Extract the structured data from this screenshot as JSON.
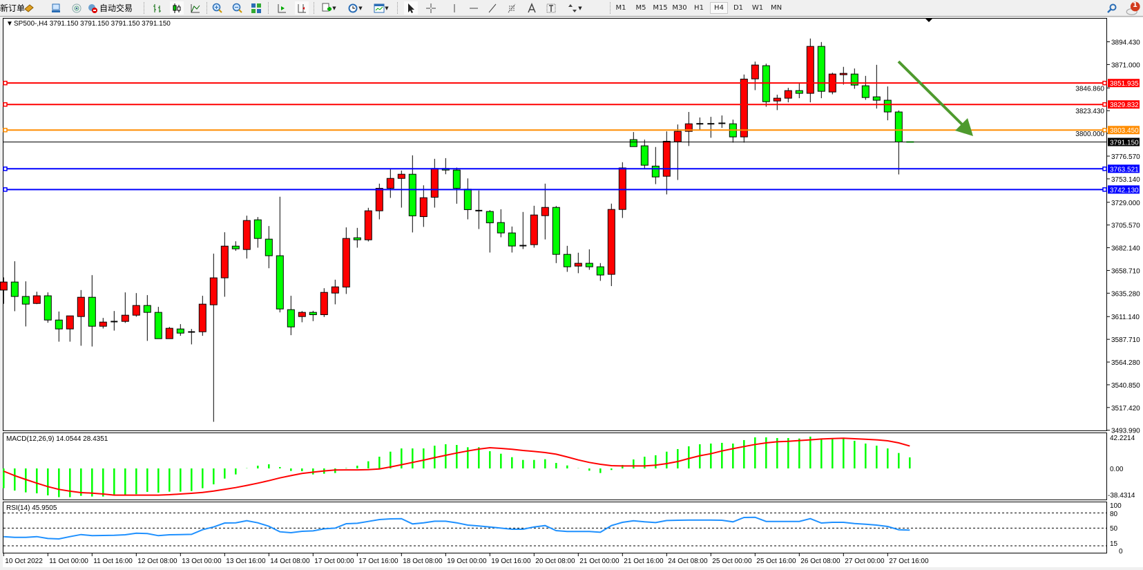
{
  "toolbar": {
    "new_order_label": "新订单",
    "auto_trading_label": "自动交易",
    "icons": [
      "market-watch-icon",
      "navigator-icon",
      "signals-icon",
      "auto-trading-icon",
      "bar-chart-icon",
      "candlestick-icon",
      "line-chart-icon",
      "zoom-in-icon",
      "zoom-out-icon",
      "tile-windows-icon",
      "auto-scroll-icon",
      "chart-shift-icon",
      "indicators-icon",
      "periods-icon",
      "templates-icon",
      "cursor-icon",
      "crosshair-icon",
      "vertical-line-icon",
      "horizontal-line-icon",
      "trendline-icon",
      "fibonacci-icon",
      "text-icon",
      "text-label-icon",
      "arrows-icon",
      "search-icon",
      "notifications-icon"
    ],
    "timeframes": [
      "M1",
      "M5",
      "M15",
      "M30",
      "H1",
      "H4",
      "D1",
      "W1",
      "MN"
    ],
    "active_timeframe": "H4",
    "notification_count": "1"
  },
  "chart": {
    "header": "SP500-,H4  3791.150 3791.150 3791.150 3791.150",
    "symbol": "SP500-",
    "timeframe": "H4",
    "colors": {
      "bull_candle": "#ff0000",
      "bear_candle": "#00ff00",
      "macd_histogram": "#00ff00",
      "macd_signal": "#ff0000",
      "rsi_line": "#1e90ff",
      "arrow": "#4e9a2e"
    },
    "price_axis_labels": [
      "3894.430",
      "3871.000",
      "3846.860",
      "3823.430",
      "3800.000",
      "3776.570",
      "3753.140",
      "3729.000",
      "3705.570",
      "3682.140",
      "3658.710",
      "3635.280",
      "3611.140",
      "3587.710",
      "3564.280",
      "3540.850",
      "3517.420",
      "3493.990"
    ],
    "horizontal_lines": [
      {
        "price": 3851.935,
        "label": "3851.935",
        "color": "#ff0000"
      },
      {
        "price": 3829.832,
        "label": "3829.832",
        "color": "#ff0000"
      },
      {
        "price": 3803.45,
        "label": "3803.450",
        "color": "#ff8c00"
      },
      {
        "price": 3763.521,
        "label": "3763.521",
        "color": "#0000ff"
      },
      {
        "price": 3742.13,
        "label": "3742.130",
        "color": "#0000ff"
      }
    ],
    "current_price": {
      "price": 3791.15,
      "label": "3791.150",
      "color": "#000000"
    },
    "time_labels": [
      "10 Oct 2022",
      "11 Oct 00:00",
      "11 Oct 16:00",
      "12 Oct 08:00",
      "13 Oct 00:00",
      "13 Oct 16:00",
      "14 Oct 08:00",
      "17 Oct 00:00",
      "17 Oct 16:00",
      "18 Oct 08:00",
      "19 Oct 00:00",
      "19 Oct 16:00",
      "20 Oct 08:00",
      "21 Oct 00:00",
      "21 Oct 16:00",
      "24 Oct 08:00",
      "25 Oct 00:00",
      "25 Oct 16:00",
      "26 Oct 08:00",
      "27 Oct 00:00",
      "27 Oct 16:00"
    ],
    "candles_ohlc": [
      [
        3638.5,
        3651.6,
        3624.3,
        3646.8
      ],
      [
        3646.8,
        3668.2,
        3616.7,
        3631.9
      ],
      [
        3631.9,
        3647.5,
        3601.0,
        3624.0
      ],
      [
        3624.7,
        3636.8,
        3624.0,
        3632.6
      ],
      [
        3632.6,
        3636.1,
        3604.8,
        3607.6
      ],
      [
        3607.6,
        3616.4,
        3585.3,
        3598.4
      ],
      [
        3598.4,
        3611.9,
        3585.3,
        3611.9
      ],
      [
        3611.2,
        3638.5,
        3581.1,
        3631.1
      ],
      [
        3631.1,
        3653.9,
        3580.3,
        3601.2
      ],
      [
        3601.2,
        3609.8,
        3598.9,
        3605.5
      ],
      [
        3606.0,
        3616.9,
        3596.7,
        3606.0
      ],
      [
        3606.2,
        3636.1,
        3604.6,
        3612.6
      ],
      [
        3612.6,
        3635.4,
        3611.0,
        3622.6
      ],
      [
        3622.6,
        3633.3,
        3586.1,
        3615.5
      ],
      [
        3615.5,
        3621.2,
        3588.4,
        3588.4
      ],
      [
        3588.4,
        3600.5,
        3588.4,
        3599.1
      ],
      [
        3598.4,
        3603.4,
        3591.3,
        3594.1
      ],
      [
        3595.3,
        3598.4,
        3582.5,
        3595.3
      ],
      [
        3595.5,
        3632.6,
        3591.3,
        3624.0
      ],
      [
        3623.3,
        3676.0,
        3502.7,
        3651.1
      ],
      [
        3651.1,
        3698.1,
        3631.6,
        3683.8
      ],
      [
        3683.8,
        3688.8,
        3678.9,
        3681.0
      ],
      [
        3680.3,
        3715.2,
        3671.0,
        3710.2
      ],
      [
        3710.9,
        3713.8,
        3682.2,
        3691.7
      ],
      [
        3691.0,
        3704.5,
        3661.0,
        3673.9
      ],
      [
        3673.9,
        3734.7,
        3615.5,
        3619.0
      ],
      [
        3618.3,
        3632.6,
        3592.0,
        3600.5
      ],
      [
        3611.2,
        3616.9,
        3605.3,
        3615.5
      ],
      [
        3615.5,
        3617.1,
        3606.5,
        3613.1
      ],
      [
        3613.1,
        3640.4,
        3610.7,
        3636.1
      ],
      [
        3635.4,
        3649.2,
        3623.8,
        3641.8
      ],
      [
        3641.6,
        3703.1,
        3634.5,
        3691.7
      ],
      [
        3692.4,
        3702.6,
        3682.2,
        3690.3
      ],
      [
        3690.3,
        3723.3,
        3688.6,
        3720.2
      ],
      [
        3720.2,
        3748.2,
        3711.4,
        3743.4
      ],
      [
        3743.4,
        3763.9,
        3733.5,
        3753.6
      ],
      [
        3753.6,
        3761.7,
        3723.5,
        3757.9
      ],
      [
        3757.9,
        3777.4,
        3697.9,
        3715.0
      ],
      [
        3714.2,
        3746.5,
        3703.6,
        3733.7
      ],
      [
        3734.2,
        3773.8,
        3723.5,
        3763.9
      ],
      [
        3763.9,
        3774.5,
        3757.9,
        3762.2
      ],
      [
        3762.2,
        3764.8,
        3727.5,
        3743.4
      ],
      [
        3742.5,
        3753.6,
        3711.4,
        3721.4
      ],
      [
        3720.4,
        3741.1,
        3701.4,
        3720.4
      ],
      [
        3719.5,
        3720.9,
        3677.2,
        3707.8
      ],
      [
        3708.1,
        3721.8,
        3692.9,
        3697.4
      ],
      [
        3697.4,
        3704.0,
        3677.2,
        3683.9
      ],
      [
        3684.3,
        3719.0,
        3680.8,
        3684.3
      ],
      [
        3685.3,
        3725.4,
        3682.2,
        3715.9
      ],
      [
        3715.2,
        3748.2,
        3690.7,
        3723.7
      ],
      [
        3723.7,
        3725.2,
        3666.3,
        3675.3
      ],
      [
        3675.3,
        3684.1,
        3657.3,
        3662.5
      ],
      [
        3663.2,
        3677.0,
        3655.9,
        3666.1
      ],
      [
        3666.1,
        3680.5,
        3659.4,
        3662.5
      ],
      [
        3662.5,
        3666.3,
        3648.0,
        3654.0
      ],
      [
        3654.7,
        3727.6,
        3642.6,
        3721.6
      ],
      [
        3721.6,
        3770.3,
        3712.8,
        3764.4
      ],
      [
        3793.6,
        3801.4,
        3786.4,
        3786.4
      ],
      [
        3787.2,
        3793.6,
        3763.4,
        3767.2
      ],
      [
        3766.3,
        3786.0,
        3747.7,
        3755.1
      ],
      [
        3755.8,
        3802.1,
        3737.1,
        3791.9
      ],
      [
        3791.4,
        3809.2,
        3752.0,
        3802.1
      ],
      [
        3802.1,
        3822.1,
        3787.0,
        3809.9
      ],
      [
        3809.9,
        3816.4,
        3803.3,
        3809.9
      ],
      [
        3809.9,
        3817.1,
        3795.5,
        3809.9
      ],
      [
        3810.4,
        3818.5,
        3805.7,
        3810.4
      ],
      [
        3809.9,
        3814.2,
        3790.5,
        3796.4
      ],
      [
        3796.4,
        3860.7,
        3790.5,
        3856.0
      ],
      [
        3856.2,
        3874.0,
        3844.6,
        3870.5
      ],
      [
        3869.8,
        3871.9,
        3827.5,
        3832.7
      ],
      [
        3833.4,
        3839.9,
        3824.0,
        3836.3
      ],
      [
        3836.3,
        3847.0,
        3832.0,
        3844.1
      ],
      [
        3844.1,
        3852.2,
        3836.3,
        3841.3
      ],
      [
        3841.3,
        3897.8,
        3832.0,
        3889.7
      ],
      [
        3889.7,
        3894.2,
        3836.3,
        3843.4
      ],
      [
        3842.7,
        3862.6,
        3840.3,
        3861.2
      ],
      [
        3860.5,
        3868.6,
        3850.3,
        3861.9
      ],
      [
        3861.2,
        3866.9,
        3846.0,
        3849.8
      ],
      [
        3849.1,
        3859.3,
        3834.6,
        3837.0
      ],
      [
        3837.7,
        3870.7,
        3825.6,
        3834.2
      ],
      [
        3834.2,
        3848.4,
        3813.5,
        3822.1
      ],
      [
        3822.1,
        3823.7,
        3757.7,
        3791.2
      ],
      [
        3791.15,
        3791.15,
        3791.15,
        3791.15
      ]
    ],
    "macd": {
      "label": "MACD(12,26,9) 14.0544 28.4351",
      "axis_labels": [
        "42.2214",
        "0.00",
        "-38.4314"
      ],
      "histogram": [
        -25.1,
        -28.1,
        -30.4,
        -31.6,
        -34.2,
        -36.5,
        -36.5,
        -34.8,
        -35.7,
        -35.7,
        -33.9,
        -33.9,
        -32.7,
        -29.8,
        -30.7,
        -29.5,
        -29.5,
        -28.7,
        -25.1,
        -20.2,
        -12.9,
        -7.6,
        0.3,
        3.5,
        5.3,
        1.8,
        -3.2,
        -3.5,
        -7.6,
        -6.7,
        -5.8,
        0.5,
        3.5,
        9.1,
        14.9,
        21.3,
        25.4,
        25.4,
        25.4,
        28.9,
        30.7,
        29.8,
        26.9,
        26.9,
        21.9,
        18.7,
        14.3,
        10.8,
        10.8,
        11.7,
        7.0,
        3.8,
        0.3,
        -2.9,
        -5.8,
        -2.0,
        4.4,
        11.4,
        14.9,
        16.7,
        21.3,
        24.6,
        28.1,
        30.7,
        31.6,
        32.5,
        31.6,
        36.0,
        39.5,
        39.5,
        38.6,
        38.6,
        38.0,
        40.4,
        37.7,
        38.6,
        38.3,
        35.1,
        31.6,
        28.9,
        25.4,
        19.6,
        14.05
      ],
      "signal": [
        -3.5,
        -9.1,
        -14.0,
        -18.7,
        -23.1,
        -26.6,
        -28.9,
        -30.7,
        -31.3,
        -32.5,
        -33.9,
        -33.9,
        -33.9,
        -33.9,
        -33.9,
        -33.3,
        -32.5,
        -31.6,
        -30.4,
        -28.7,
        -26.6,
        -24.3,
        -21.6,
        -18.7,
        -15.5,
        -12.0,
        -9.1,
        -6.4,
        -4.7,
        -3.2,
        -2.0,
        -1.8,
        -1.8,
        -1.5,
        -0.6,
        1.8,
        4.7,
        7.6,
        10.5,
        13.7,
        16.7,
        19.6,
        22.2,
        24.6,
        26.3,
        25.4,
        24.3,
        22.8,
        21.6,
        20.2,
        18.1,
        14.6,
        10.8,
        7.6,
        5.3,
        3.5,
        3.2,
        3.2,
        3.2,
        4.1,
        6.1,
        8.8,
        12.6,
        16.1,
        18.7,
        22.2,
        25.1,
        27.8,
        30.4,
        32.5,
        33.9,
        34.5,
        35.4,
        36.3,
        37.4,
        38.0,
        38.3,
        37.7,
        37.1,
        36.3,
        35.1,
        32.5,
        28.4
      ]
    },
    "rsi": {
      "label": "RSI(14) 45.9505",
      "axis_labels": [
        "100",
        "80",
        "50",
        "15",
        "0"
      ],
      "levels": [
        80,
        50,
        15
      ],
      "values": [
        33.2,
        31.8,
        31.8,
        33.2,
        29.5,
        28.6,
        33.2,
        37.3,
        35.0,
        35.5,
        35.9,
        36.8,
        40.0,
        39.1,
        35.0,
        36.8,
        37.3,
        37.7,
        46.8,
        52.3,
        60.0,
        60.5,
        64.5,
        60.5,
        53.6,
        42.7,
        40.9,
        43.6,
        44.5,
        48.6,
        50.0,
        58.6,
        59.5,
        63.2,
        66.8,
        68.2,
        68.6,
        58.2,
        60.5,
        63.6,
        63.6,
        60.5,
        55.9,
        54.1,
        52.3,
        50.0,
        47.7,
        47.7,
        52.3,
        55.0,
        45.0,
        43.2,
        43.2,
        43.2,
        41.8,
        55.0,
        61.4,
        64.5,
        62.3,
        60.9,
        65.0,
        65.5,
        65.9,
        65.9,
        65.9,
        65.5,
        62.3,
        70.9,
        71.4,
        63.2,
        63.2,
        63.2,
        63.2,
        68.6,
        60.0,
        61.4,
        61.4,
        59.1,
        57.7,
        55.9,
        53.2,
        46.8,
        45.95
      ]
    }
  }
}
